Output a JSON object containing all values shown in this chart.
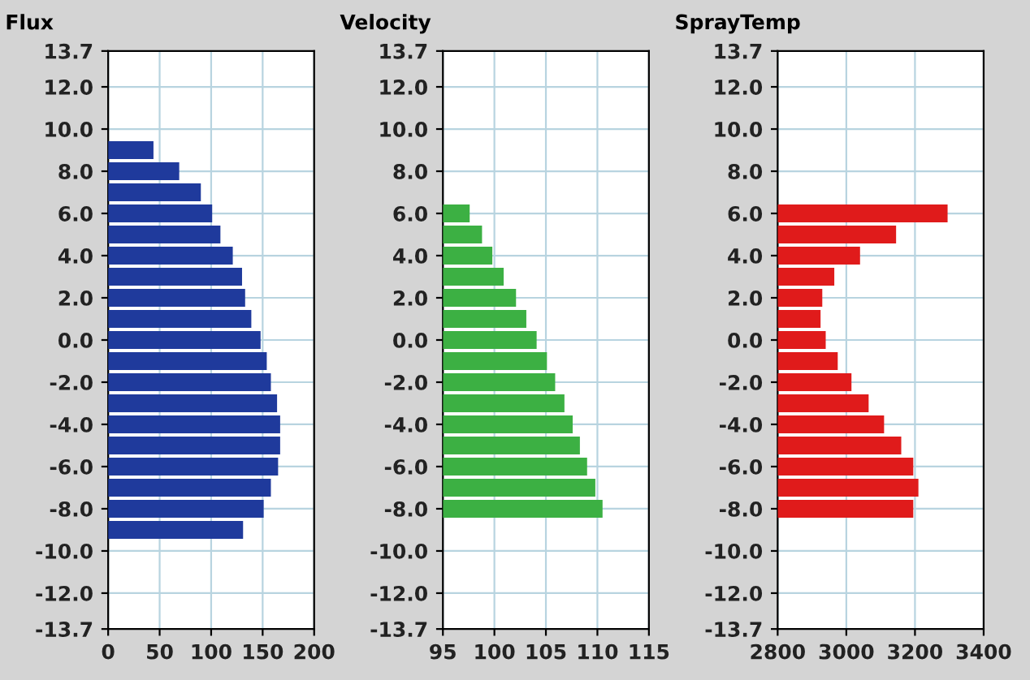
{
  "chart_data": [
    {
      "type": "bar",
      "orientation": "horizontal",
      "title": "Flux",
      "x": [
        9,
        8,
        7,
        6,
        5,
        4,
        3,
        2,
        1,
        0,
        -1,
        -2,
        -3,
        -4,
        -5,
        -6,
        -7,
        -8,
        -9
      ],
      "series": [
        {
          "color": "#1f3a9c",
          "values": [
            44,
            69,
            90,
            101,
            109,
            121,
            130,
            133,
            139,
            148,
            154,
            158,
            164,
            167,
            167,
            165,
            158,
            151,
            131
          ]
        }
      ],
      "xlim": [
        0,
        200
      ],
      "xticks": [
        0,
        50,
        100,
        150,
        200
      ],
      "ylim": [
        -13.7,
        13.7
      ],
      "yticks": [
        {
          "value": 13.7,
          "label": "13.7"
        },
        {
          "value": 12,
          "label": "12.0"
        },
        {
          "value": 10,
          "label": "10.0"
        },
        {
          "value": 8,
          "label": "8.0"
        },
        {
          "value": 6,
          "label": "6.0"
        },
        {
          "value": 4,
          "label": "4.0"
        },
        {
          "value": 2,
          "label": "2.0"
        },
        {
          "value": 0,
          "label": "0.0"
        },
        {
          "value": -2,
          "label": "-2.0"
        },
        {
          "value": -4,
          "label": "-4.0"
        },
        {
          "value": -6,
          "label": "-6.0"
        },
        {
          "value": -8,
          "label": "-8.0"
        },
        {
          "value": -10,
          "label": "-10.0"
        },
        {
          "value": -12,
          "label": "-12.0"
        },
        {
          "value": -13.7,
          "label": "-13.7"
        }
      ],
      "grid": true
    },
    {
      "type": "bar",
      "orientation": "horizontal",
      "title": "Velocity",
      "x": [
        6,
        5,
        4,
        3,
        2,
        1,
        0,
        -1,
        -2,
        -3,
        -4,
        -5,
        -6,
        -7,
        -8
      ],
      "series": [
        {
          "color": "#3cb043",
          "values": [
            97.6,
            98.8,
            99.8,
            100.9,
            102.1,
            103.1,
            104.1,
            105.1,
            105.9,
            106.8,
            107.6,
            108.3,
            109.0,
            109.8,
            110.5
          ]
        }
      ],
      "xlim": [
        95,
        115
      ],
      "xticks": [
        95,
        100,
        105,
        110,
        115
      ],
      "ylim": [
        -13.7,
        13.7
      ],
      "yticks": [
        {
          "value": 13.7,
          "label": "13.7"
        },
        {
          "value": 12,
          "label": "12.0"
        },
        {
          "value": 10,
          "label": "10.0"
        },
        {
          "value": 8,
          "label": "8.0"
        },
        {
          "value": 6,
          "label": "6.0"
        },
        {
          "value": 4,
          "label": "4.0"
        },
        {
          "value": 2,
          "label": "2.0"
        },
        {
          "value": 0,
          "label": "0.0"
        },
        {
          "value": -2,
          "label": "-2.0"
        },
        {
          "value": -4,
          "label": "-4.0"
        },
        {
          "value": -6,
          "label": "-6.0"
        },
        {
          "value": -8,
          "label": "-8.0"
        },
        {
          "value": -10,
          "label": "-10.0"
        },
        {
          "value": -12,
          "label": "-12.0"
        },
        {
          "value": -13.7,
          "label": "-13.7"
        }
      ],
      "grid": true
    },
    {
      "type": "bar",
      "orientation": "horizontal",
      "title": "SprayTemp",
      "x": [
        6,
        5,
        4,
        3,
        2,
        1,
        0,
        -1,
        -2,
        -3,
        -4,
        -5,
        -6,
        -7,
        -8
      ],
      "series": [
        {
          "color": "#e01b1b",
          "values": [
            3295,
            3145,
            3040,
            2965,
            2930,
            2925,
            2940,
            2975,
            3015,
            3065,
            3110,
            3160,
            3195,
            3210,
            3195
          ]
        }
      ],
      "xlim": [
        2800,
        3400
      ],
      "xticks": [
        2800,
        3000,
        3200,
        3400
      ],
      "ylim": [
        -13.7,
        13.7
      ],
      "yticks": [
        {
          "value": 13.7,
          "label": "13.7"
        },
        {
          "value": 12,
          "label": "12.0"
        },
        {
          "value": 10,
          "label": "10.0"
        },
        {
          "value": 8,
          "label": "8.0"
        },
        {
          "value": 6,
          "label": "6.0"
        },
        {
          "value": 4,
          "label": "4.0"
        },
        {
          "value": 2,
          "label": "2.0"
        },
        {
          "value": 0,
          "label": "0.0"
        },
        {
          "value": -2,
          "label": "-2.0"
        },
        {
          "value": -4,
          "label": "-4.0"
        },
        {
          "value": -6,
          "label": "-6.0"
        },
        {
          "value": -8,
          "label": "-8.0"
        },
        {
          "value": -10,
          "label": "-10.0"
        },
        {
          "value": -12,
          "label": "-12.0"
        },
        {
          "value": -13.7,
          "label": "-13.7"
        }
      ],
      "grid": true
    }
  ]
}
